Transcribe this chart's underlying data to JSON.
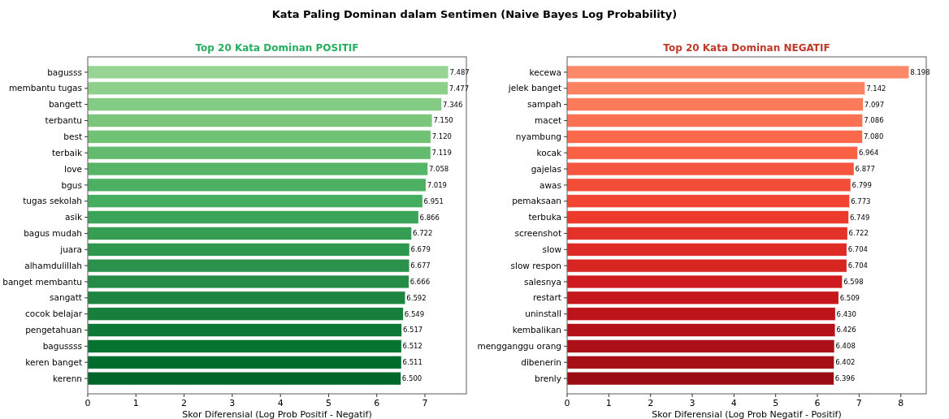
{
  "chart_data": [
    {
      "type": "bar",
      "orientation": "horizontal",
      "title": "Top 20 Kata Dominan POSITIF",
      "annotations": [
        "Kata Paling Dominan dalam Sentimen (Naive Bayes Log Probability)"
      ],
      "xlabel": "Skor Diferensial (Log Prob Positif - Negatif)",
      "categories": [
        "bagusss",
        "membantu tugas",
        "bangett",
        "terbantu",
        "best",
        "terbaik",
        "love",
        "bgus",
        "tugas sekolah",
        "asik",
        "bagus mudah",
        "juara",
        "alhamdulillah",
        "banget membantu",
        "sangatt",
        "cocok belajar",
        "pengetahuan",
        "bagussss",
        "keren banget",
        "kerenn"
      ],
      "values": [
        7.487,
        7.477,
        7.346,
        7.15,
        7.12,
        7.119,
        7.058,
        7.019,
        6.951,
        6.866,
        6.722,
        6.679,
        6.677,
        6.666,
        6.592,
        6.549,
        6.517,
        6.512,
        6.511,
        6.5
      ],
      "value_labels": [
        "7.487",
        "7.477",
        "7.346",
        "7.150",
        "7.120",
        "7.119",
        "7.058",
        "7.019",
        "6.951",
        "6.866",
        "6.722",
        "6.679",
        "6.677",
        "6.666",
        "6.592",
        "6.549",
        "6.517",
        "6.512",
        "6.511",
        "6.500"
      ],
      "colors": [
        "#98d594",
        "#8ed08b",
        "#84cc83",
        "#7ac77b",
        "#70c274",
        "#63bc6e",
        "#56b567",
        "#4bb062",
        "#44ad5f",
        "#3ba458",
        "#359e53",
        "#2f984f",
        "#2a924a",
        "#248c46",
        "#1e8540",
        "#157f3b",
        "#0e7836",
        "#077331",
        "#006d2c",
        "#00662a"
      ],
      "xlim": [
        0,
        7.86
      ],
      "xticks": [
        0,
        1,
        2,
        3,
        4,
        5,
        6,
        7
      ]
    },
    {
      "type": "bar",
      "orientation": "horizontal",
      "title": "Top 20 Kata Dominan NEGATIF",
      "xlabel": "Skor Diferensial (Log Prob Negatif - Positif)",
      "categories": [
        "kecewa",
        "jelek banget",
        "sampah",
        "macet",
        "nyambung",
        "kocak",
        "gajelas",
        "awas",
        "pemaksaan",
        "terbuka",
        "screenshot",
        "slow",
        "slow respon",
        "salesnya",
        "restart",
        "uninstall",
        "kembalikan",
        "mengganggu orang",
        "dibenerin",
        "brenly"
      ],
      "values": [
        8.198,
        7.142,
        7.097,
        7.086,
        7.08,
        6.964,
        6.877,
        6.799,
        6.773,
        6.749,
        6.722,
        6.704,
        6.704,
        6.598,
        6.509,
        6.43,
        6.426,
        6.408,
        6.402,
        6.396
      ],
      "value_labels": [
        "8.198",
        "7.142",
        "7.097",
        "7.086",
        "7.080",
        "6.964",
        "6.877",
        "6.799",
        "6.773",
        "6.749",
        "6.722",
        "6.704",
        "6.704",
        "6.598",
        "6.509",
        "6.430",
        "6.426",
        "6.408",
        "6.402",
        "6.396"
      ],
      "colors": [
        "#fc8a6a",
        "#fc8262",
        "#fb7a5a",
        "#fb7252",
        "#fb694a",
        "#f96044",
        "#f5553f",
        "#f34c37",
        "#f14432",
        "#ec3b2c",
        "#e53228",
        "#de2b25",
        "#d72622",
        "#ce1a1e",
        "#c5171c",
        "#bc141a",
        "#b31218",
        "#aa1016",
        "#a50f15",
        "#9a0c14"
      ],
      "xlim": [
        0,
        8.61
      ],
      "xticks": [
        0,
        1,
        2,
        3,
        4,
        5,
        6,
        7,
        8
      ]
    }
  ]
}
